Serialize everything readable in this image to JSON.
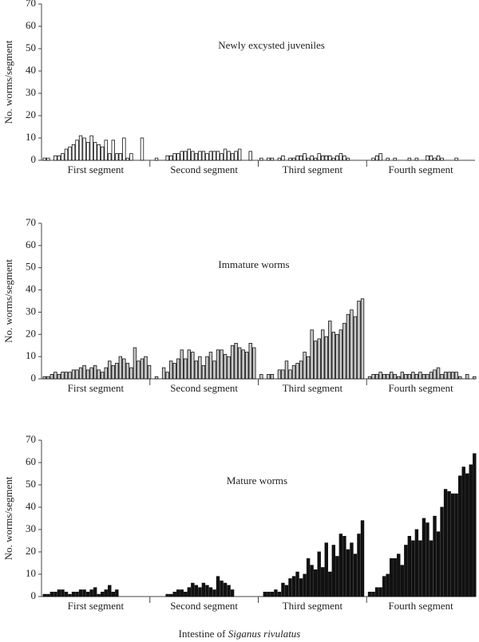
{
  "chart_data": [
    {
      "type": "bar",
      "title": "Newly excysted juveniles",
      "ylabel": "No. worms/segment",
      "color": "#ffffff",
      "ylim": [
        0,
        70
      ],
      "yticks": [
        0,
        10,
        20,
        30,
        40,
        50,
        60,
        70
      ],
      "segments": [
        {
          "name": "First segment",
          "values": [
            1,
            1,
            0,
            2,
            2,
            3,
            5,
            6,
            7,
            9,
            11,
            10,
            8,
            11,
            8,
            7,
            6,
            9,
            3,
            9,
            3,
            3,
            10,
            1,
            3,
            0,
            0,
            10,
            0,
            0
          ]
        },
        {
          "name": "Second segment",
          "values": [
            0,
            1,
            0,
            0,
            2,
            2,
            3,
            3,
            4,
            4,
            5,
            4,
            3,
            4,
            4,
            3,
            4,
            4,
            4,
            3,
            5,
            4,
            3,
            4,
            5,
            0,
            0,
            4,
            0,
            0
          ]
        },
        {
          "name": "Third segment",
          "values": [
            1,
            0,
            1,
            1,
            0,
            1,
            2,
            0,
            1,
            1,
            2,
            2,
            3,
            1,
            2,
            1,
            3,
            2,
            2,
            2,
            1,
            2,
            3,
            2,
            1,
            0,
            0,
            0,
            0,
            0
          ]
        },
        {
          "name": "Fourth segment",
          "values": [
            0,
            1,
            2,
            3,
            0,
            1,
            0,
            1,
            0,
            0,
            0,
            1,
            0,
            1,
            0,
            0,
            2,
            2,
            1,
            2,
            1,
            0,
            0,
            0,
            1,
            0,
            0,
            0,
            0,
            0
          ]
        }
      ]
    },
    {
      "type": "bar",
      "title": "Immature worms",
      "ylabel": "No. worms/segment",
      "color": "#c8c8c8",
      "ylim": [
        0,
        70
      ],
      "yticks": [
        0,
        10,
        20,
        30,
        40,
        50,
        60,
        70
      ],
      "segments": [
        {
          "name": "First segment",
          "values": [
            1,
            1,
            2,
            3,
            2,
            3,
            3,
            3,
            4,
            4,
            5,
            6,
            4,
            5,
            6,
            4,
            3,
            5,
            8,
            6,
            7,
            10,
            9,
            7,
            5,
            14,
            8,
            9,
            10,
            6
          ]
        },
        {
          "name": "Second segment",
          "values": [
            0,
            1,
            0,
            5,
            3,
            8,
            7,
            9,
            13,
            9,
            13,
            12,
            8,
            10,
            6,
            10,
            12,
            8,
            13,
            13,
            11,
            10,
            15,
            16,
            14,
            13,
            12,
            16,
            14,
            0
          ]
        },
        {
          "name": "Third segment",
          "values": [
            2,
            0,
            2,
            2,
            0,
            4,
            4,
            8,
            4,
            6,
            7,
            8,
            12,
            10,
            22,
            17,
            18,
            22,
            19,
            26,
            21,
            20,
            22,
            25,
            29,
            31,
            28,
            35,
            36,
            0
          ]
        },
        {
          "name": "Fourth segment",
          "values": [
            1,
            2,
            2,
            3,
            2,
            2,
            3,
            2,
            1,
            3,
            2,
            2,
            3,
            2,
            3,
            2,
            2,
            3,
            4,
            5,
            2,
            3,
            3,
            3,
            3,
            1,
            0,
            2,
            0,
            1
          ]
        }
      ]
    },
    {
      "type": "bar",
      "title": "Mature worms",
      "ylabel": "No. worms/segment",
      "color": "#111111",
      "ylim": [
        0,
        70
      ],
      "yticks": [
        0,
        10,
        20,
        30,
        40,
        50,
        60,
        70
      ],
      "segments": [
        {
          "name": "First segment",
          "values": [
            1,
            1,
            2,
            2,
            3,
            3,
            2,
            1,
            2,
            2,
            3,
            3,
            2,
            3,
            4,
            1,
            2,
            3,
            5,
            2,
            3,
            0,
            0,
            0,
            0,
            0,
            0,
            0,
            0,
            0
          ]
        },
        {
          "name": "Second segment",
          "values": [
            0,
            0,
            0,
            0,
            1,
            1,
            2,
            3,
            3,
            2,
            4,
            6,
            5,
            4,
            6,
            5,
            4,
            3,
            9,
            7,
            6,
            5,
            3,
            0,
            0,
            0,
            0,
            0,
            0,
            0
          ]
        },
        {
          "name": "Third segment",
          "values": [
            0,
            2,
            2,
            2,
            3,
            2,
            6,
            5,
            8,
            9,
            11,
            8,
            10,
            17,
            14,
            12,
            20,
            13,
            24,
            11,
            23,
            18,
            28,
            27,
            21,
            24,
            19,
            28,
            34,
            0
          ]
        },
        {
          "name": "Fourth segment",
          "values": [
            2,
            2,
            4,
            4,
            9,
            10,
            17,
            17,
            19,
            14,
            23,
            27,
            25,
            30,
            25,
            35,
            33,
            25,
            36,
            29,
            40,
            48,
            47,
            46,
            46,
            54,
            58,
            55,
            59,
            64
          ]
        }
      ],
      "xlabel": {
        "text": "Intestine of",
        "italic": "Siganus rivulatus"
      }
    }
  ]
}
